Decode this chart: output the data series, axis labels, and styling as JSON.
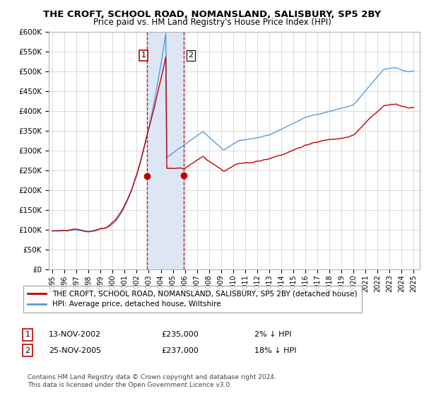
{
  "title": "THE CROFT, SCHOOL ROAD, NOMANSLAND, SALISBURY, SP5 2BY",
  "subtitle": "Price paid vs. HM Land Registry's House Price Index (HPI)",
  "legend_line1": "THE CROFT, SCHOOL ROAD, NOMANSLAND, SALISBURY, SP5 2BY (detached house)",
  "legend_line2": "HPI: Average price, detached house, Wiltshire",
  "transaction1_date": "13-NOV-2002",
  "transaction1_price": 235000,
  "transaction1_hpi": "2% ↓ HPI",
  "transaction2_date": "25-NOV-2005",
  "transaction2_price": 237000,
  "transaction2_hpi": "18% ↓ HPI",
  "footer": "Contains HM Land Registry data © Crown copyright and database right 2024.\nThis data is licensed under the Open Government Licence v3.0.",
  "hpi_color": "#5b9bd5",
  "price_color": "#c00000",
  "highlight_color": "#dce6f5",
  "ylim": [
    0,
    600000
  ],
  "yticks": [
    0,
    50000,
    100000,
    150000,
    200000,
    250000,
    300000,
    350000,
    400000,
    450000,
    500000,
    550000,
    600000
  ],
  "transaction1_x": 2002.87,
  "transaction2_x": 2005.9
}
